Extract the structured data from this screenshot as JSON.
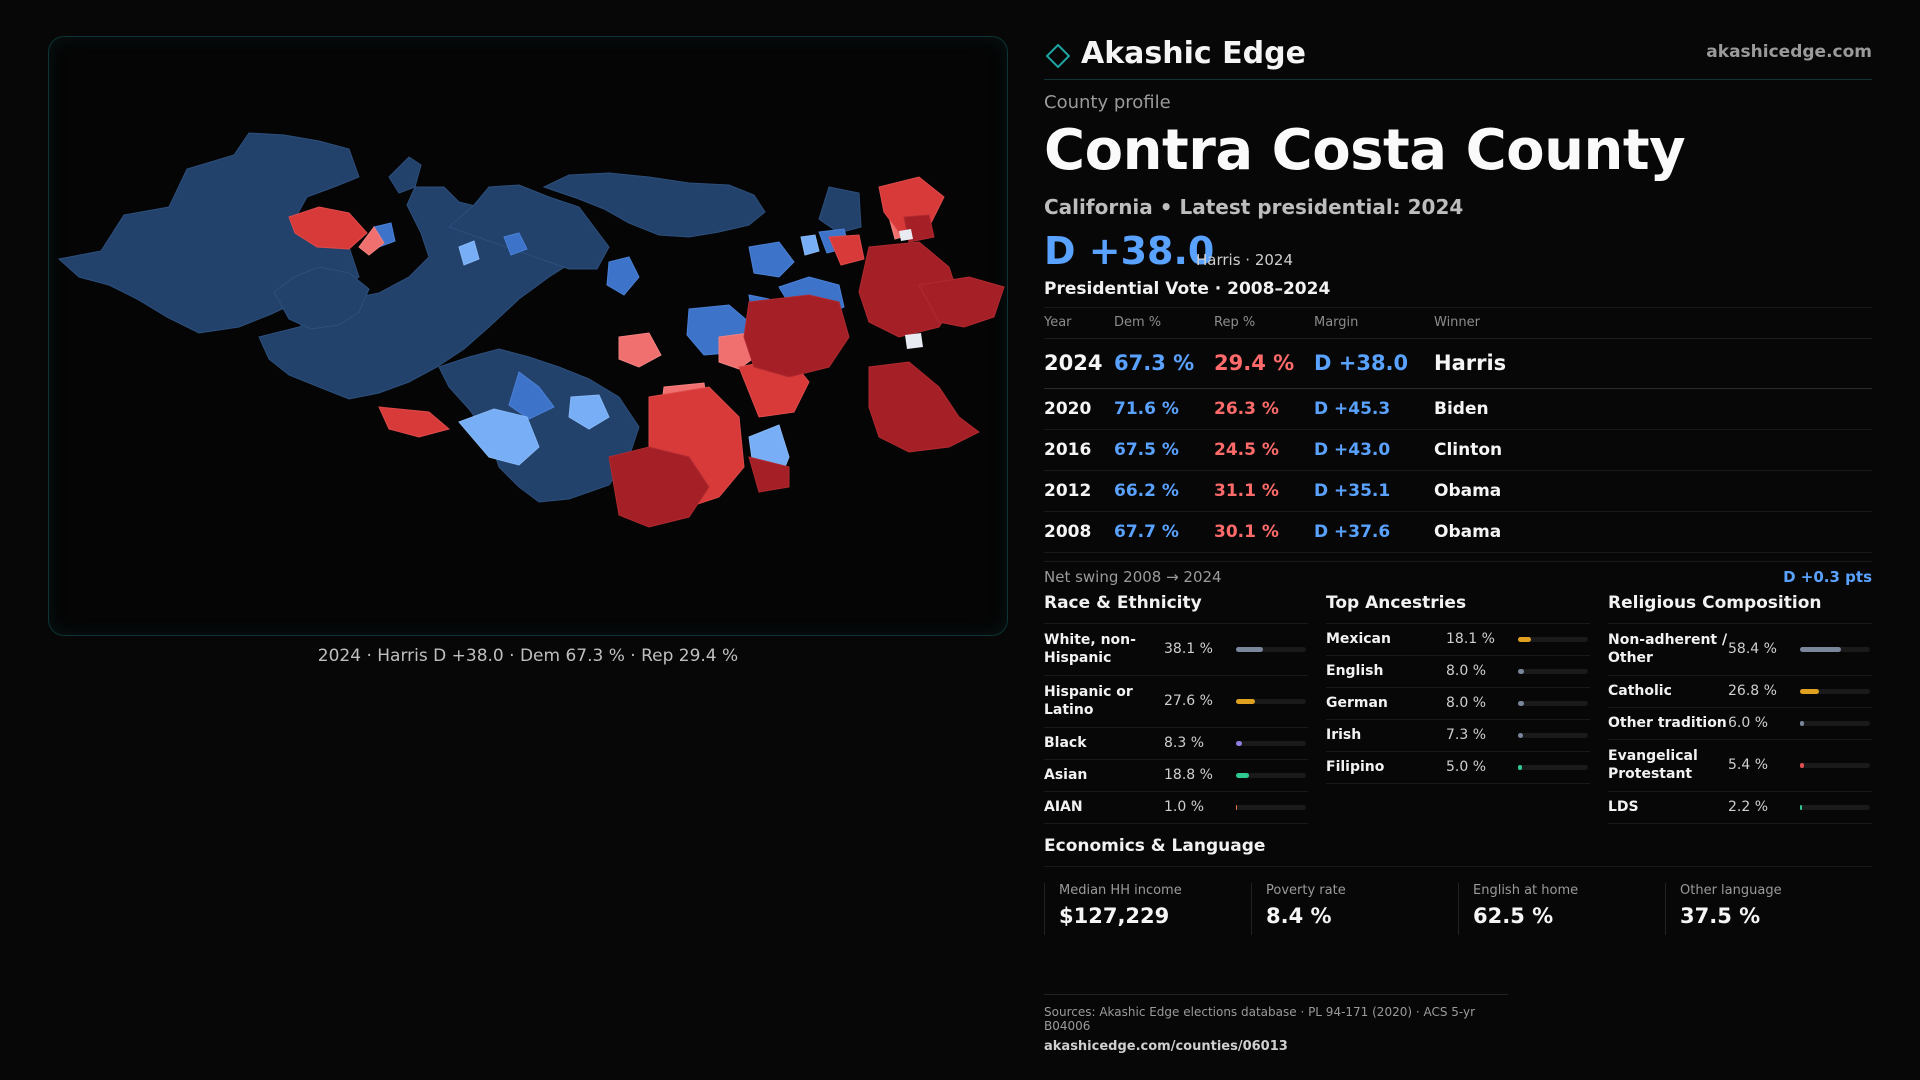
{
  "map": {
    "caption": "2024 · Harris D +38.0 · Dem 67.3 % · Rep 29.4 %"
  },
  "brand": {
    "name": "Akashic Edge",
    "url": "akashicedge.com"
  },
  "profile": {
    "kicker": "County profile",
    "title": "Contra Costa County",
    "subtitle": "California • Latest presidential: 2024",
    "margin": "D +38.0",
    "margin_sub": "Harris · 2024"
  },
  "presidential": {
    "title": "Presidential Vote · 2008–2024",
    "headers": {
      "year": "Year",
      "dem": "Dem %",
      "rep": "Rep %",
      "margin": "Margin",
      "winner": "Winner"
    },
    "rows": [
      {
        "year": "2024",
        "dem": "67.3 %",
        "rep": "29.4 %",
        "margin": "D +38.0",
        "winner": "Harris"
      },
      {
        "year": "2020",
        "dem": "71.6 %",
        "rep": "26.3 %",
        "margin": "D +45.3",
        "winner": "Biden"
      },
      {
        "year": "2016",
        "dem": "67.5 %",
        "rep": "24.5 %",
        "margin": "D +43.0",
        "winner": "Clinton"
      },
      {
        "year": "2012",
        "dem": "66.2 %",
        "rep": "31.1 %",
        "margin": "D +35.1",
        "winner": "Obama"
      },
      {
        "year": "2008",
        "dem": "67.7 %",
        "rep": "30.1 %",
        "margin": "D +37.6",
        "winner": "Obama"
      }
    ],
    "swing_label": "Net swing 2008 → 2024",
    "swing_value": "D +0.3 pts"
  },
  "race": {
    "title": "Race & Ethnicity",
    "rows": [
      {
        "label": "White, non-Hispanic",
        "value": "38.1 %",
        "pct": 38.1,
        "color": "#7a8699"
      },
      {
        "label": "Hispanic or Latino",
        "value": "27.6 %",
        "pct": 27.6,
        "color": "#e0a020"
      },
      {
        "label": "Black",
        "value": "8.3 %",
        "pct": 8.3,
        "color": "#8f7fe0"
      },
      {
        "label": "Asian",
        "value": "18.8 %",
        "pct": 18.8,
        "color": "#2fc98f"
      },
      {
        "label": "AIAN",
        "value": "1.0 %",
        "pct": 1.0,
        "color": "#e07840"
      }
    ]
  },
  "ancestry": {
    "title": "Top Ancestries",
    "rows": [
      {
        "label": "Mexican",
        "value": "18.1 %",
        "pct": 18.1,
        "color": "#e0a020"
      },
      {
        "label": "English",
        "value": "8.0 %",
        "pct": 8.0,
        "color": "#7a8699"
      },
      {
        "label": "German",
        "value": "8.0 %",
        "pct": 8.0,
        "color": "#7a8699"
      },
      {
        "label": "Irish",
        "value": "7.3 %",
        "pct": 7.3,
        "color": "#7a8699"
      },
      {
        "label": "Filipino",
        "value": "5.0 %",
        "pct": 5.0,
        "color": "#2fc98f"
      }
    ]
  },
  "religion": {
    "title": "Religious Composition",
    "rows": [
      {
        "label": "Non-adherent / Other",
        "value": "58.4 %",
        "pct": 58.4,
        "color": "#7a8699"
      },
      {
        "label": "Catholic",
        "value": "26.8 %",
        "pct": 26.8,
        "color": "#e0a020"
      },
      {
        "label": "Other tradition",
        "value": "6.0 %",
        "pct": 6.0,
        "color": "#7a8699"
      },
      {
        "label": "Evangelical Protestant",
        "value": "5.4 %",
        "pct": 5.4,
        "color": "#e05050"
      },
      {
        "label": "LDS",
        "value": "2.2 %",
        "pct": 2.2,
        "color": "#2fc98f"
      }
    ]
  },
  "economics": {
    "title": "Economics & Language",
    "cards": [
      {
        "label": "Median HH income",
        "value": "$127,229"
      },
      {
        "label": "Poverty rate",
        "value": "8.4 %"
      },
      {
        "label": "English at home",
        "value": "62.5 %"
      },
      {
        "label": "Other language",
        "value": "37.5 %"
      }
    ]
  },
  "footer": {
    "sources": "Sources: Akashic Edge elections database · PL 94-171 (2020) · ACS 5-yr B04006",
    "url": "akashicedge.com/counties/06013"
  }
}
